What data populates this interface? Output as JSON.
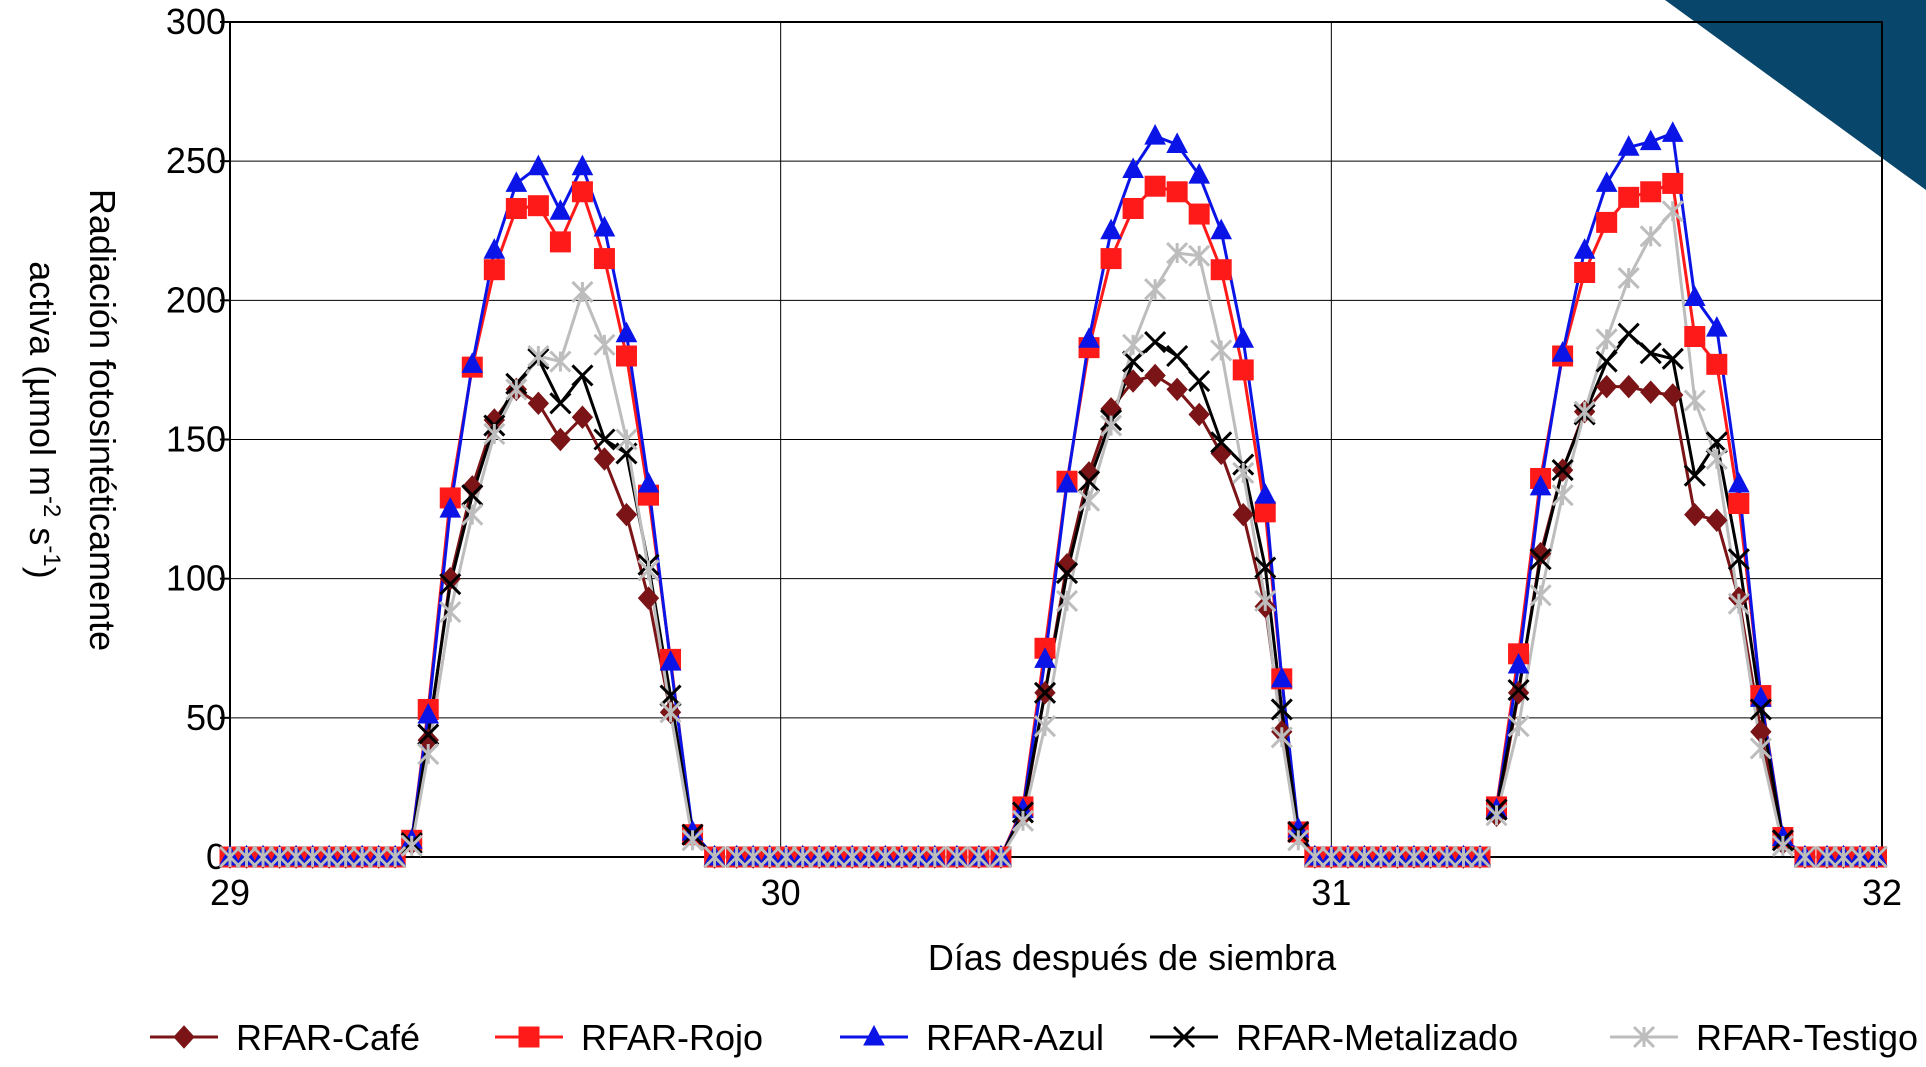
{
  "chart_data": {
    "type": "line",
    "xlabel": "Días después de siembra",
    "ylabel_line1": "Radiación fotosintéticamente",
    "ylabel_line2": "activa (µmol m",
    "ylabel_sup1": "-2",
    "ylabel_mid": " s",
    "ylabel_sup2": "-1",
    "ylabel_end": ")",
    "xlim": [
      29,
      32
    ],
    "ylim": [
      0,
      300
    ],
    "xticks": [
      "29",
      "30",
      "31",
      "32"
    ],
    "yticks": [
      "0",
      "50",
      "100",
      "150",
      "200",
      "250",
      "300"
    ],
    "grid": true,
    "legend_position": "bottom",
    "days": [
      {
        "x": [
          29.0,
          29.03,
          29.06,
          29.09,
          29.12,
          29.15,
          29.18,
          29.21,
          29.24,
          29.27,
          29.3,
          29.33,
          29.36,
          29.4,
          29.44,
          29.48,
          29.52,
          29.56,
          29.6,
          29.64,
          29.68,
          29.72,
          29.76,
          29.8,
          29.84,
          29.88,
          29.92,
          29.95,
          29.98,
          30.01,
          30.04,
          30.07
        ]
      },
      {
        "x": [
          30.07,
          30.1,
          30.13,
          30.16,
          30.19,
          30.22,
          30.25,
          30.28,
          30.32,
          30.36,
          30.4,
          30.44,
          30.48,
          30.52,
          30.56,
          30.6,
          30.64,
          30.68,
          30.72,
          30.76,
          30.8,
          30.84,
          30.88,
          30.91,
          30.94,
          30.97,
          31.0,
          31.03,
          31.06,
          31.09,
          31.12,
          31.15,
          31.18,
          31.21,
          31.24,
          31.27
        ]
      },
      {
        "x": [
          31.3,
          31.34,
          31.38,
          31.42,
          31.46,
          31.5,
          31.54,
          31.58,
          31.62,
          31.66,
          31.7,
          31.74,
          31.78,
          31.82,
          31.86,
          31.9,
          31.93,
          31.96,
          31.99
        ]
      }
    ],
    "series": [
      {
        "name": "RFAR-Café",
        "color": "#7b1416",
        "marker": "diamond",
        "values": [
          [
            0,
            0,
            0,
            0,
            0,
            0,
            0,
            0,
            0,
            0,
            0,
            5,
            42,
            100,
            133,
            157,
            168,
            163,
            150,
            158,
            143,
            123,
            93,
            52,
            8,
            0,
            0,
            0,
            0,
            0,
            0,
            0
          ],
          [
            0,
            0,
            0,
            0,
            0,
            0,
            0,
            0,
            0,
            0,
            0,
            15,
            59,
            105,
            138,
            161,
            171,
            173,
            168,
            159,
            145,
            123,
            90,
            45,
            8,
            0,
            0,
            0,
            0,
            0,
            0,
            0,
            0,
            0,
            0,
            0
          ],
          [
            15,
            59,
            109,
            139,
            160,
            169,
            169,
            167,
            166,
            123,
            121,
            93,
            45,
            5,
            0,
            0,
            0,
            0,
            0
          ]
        ]
      },
      {
        "name": "RFAR-Rojo",
        "color": "#ff1a1a",
        "marker": "square",
        "values": [
          [
            0,
            0,
            0,
            0,
            0,
            0,
            0,
            0,
            0,
            0,
            0,
            6,
            53,
            129,
            176,
            211,
            233,
            234,
            221,
            239,
            215,
            180,
            130,
            71,
            8,
            0,
            0,
            0,
            0,
            0,
            0,
            0
          ],
          [
            0,
            0,
            0,
            0,
            0,
            0,
            0,
            0,
            0,
            0,
            0,
            18,
            75,
            135,
            183,
            215,
            233,
            241,
            239,
            231,
            211,
            175,
            124,
            64,
            9,
            0,
            0,
            0,
            0,
            0,
            0,
            0,
            0,
            0,
            0,
            0
          ],
          [
            18,
            73,
            136,
            180,
            210,
            228,
            237,
            239,
            242,
            187,
            177,
            127,
            58,
            7,
            0,
            0,
            0,
            0,
            0
          ]
        ]
      },
      {
        "name": "RFAR-Azul",
        "color": "#0a14e6",
        "marker": "triangle",
        "values": [
          [
            0,
            0,
            0,
            0,
            0,
            0,
            0,
            0,
            0,
            0,
            0,
            6,
            51,
            125,
            177,
            218,
            242,
            248,
            232,
            248,
            226,
            188,
            134,
            70,
            9,
            0,
            0,
            0,
            0,
            0,
            0,
            0
          ],
          [
            0,
            0,
            0,
            0,
            0,
            0,
            0,
            0,
            0,
            0,
            0,
            17,
            71,
            134,
            186,
            225,
            247,
            259,
            256,
            245,
            225,
            186,
            130,
            64,
            10,
            0,
            0,
            0,
            0,
            0,
            0,
            0,
            0,
            0,
            0,
            0
          ],
          [
            17,
            69,
            133,
            181,
            218,
            242,
            255,
            257,
            260,
            201,
            190,
            134,
            57,
            7,
            0,
            0,
            0,
            0,
            0
          ]
        ]
      },
      {
        "name": "RFAR-Metalizado",
        "color": "#000000",
        "marker": "x",
        "values": [
          [
            0,
            0,
            0,
            0,
            0,
            0,
            0,
            0,
            0,
            0,
            0,
            5,
            44,
            98,
            130,
            155,
            170,
            179,
            163,
            173,
            150,
            145,
            105,
            58,
            8,
            0,
            0,
            0,
            0,
            0,
            0,
            0
          ],
          [
            0,
            0,
            0,
            0,
            0,
            0,
            0,
            0,
            0,
            0,
            0,
            16,
            59,
            102,
            135,
            157,
            178,
            185,
            180,
            171,
            149,
            141,
            104,
            53,
            9,
            0,
            0,
            0,
            0,
            0,
            0,
            0,
            0,
            0,
            0,
            0
          ],
          [
            17,
            60,
            107,
            139,
            159,
            178,
            188,
            181,
            179,
            137,
            149,
            107,
            53,
            6,
            0,
            0,
            0,
            0,
            0
          ]
        ]
      },
      {
        "name": "RFAR-Testigo",
        "color": "#bdbdbd",
        "marker": "star",
        "values": [
          [
            0,
            0,
            0,
            0,
            0,
            0,
            0,
            0,
            0,
            0,
            0,
            4,
            37,
            88,
            123,
            152,
            168,
            180,
            178,
            203,
            184,
            150,
            103,
            52,
            6,
            0,
            0,
            0,
            0,
            0,
            0,
            0
          ],
          [
            0,
            0,
            0,
            0,
            0,
            0,
            0,
            0,
            0,
            0,
            0,
            13,
            47,
            92,
            128,
            155,
            184,
            204,
            217,
            216,
            182,
            138,
            92,
            43,
            6,
            0,
            0,
            0,
            0,
            0,
            0,
            0,
            0,
            0,
            0,
            0
          ],
          [
            15,
            47,
            94,
            130,
            160,
            186,
            208,
            223,
            232,
            164,
            143,
            91,
            39,
            4,
            0,
            0,
            0,
            0,
            0
          ]
        ]
      }
    ]
  },
  "legend": [
    {
      "label": "RFAR-Café"
    },
    {
      "label": "RFAR-Rojo"
    },
    {
      "label": "RFAR-Azul"
    },
    {
      "label": "RFAR-Metalizado"
    },
    {
      "label": "RFAR-Testigo"
    }
  ],
  "colors": {
    "corner_shape": "#08466b",
    "gridline": "#000000"
  }
}
